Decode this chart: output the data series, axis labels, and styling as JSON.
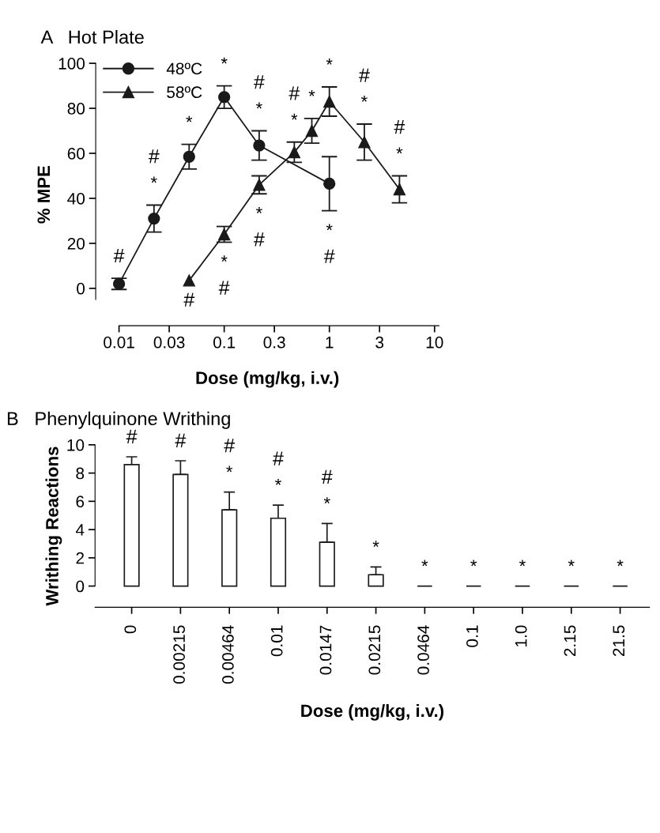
{
  "chart_data": [
    {
      "type": "line",
      "title": "A   Hot Plate",
      "xlabel": "Dose (mg/kg, i.v.)",
      "ylabel": "% MPE",
      "log": "x",
      "xlim": [
        0.006,
        11
      ],
      "xticks": [
        0.01,
        0.03,
        0.1,
        0.3,
        1,
        3,
        10
      ],
      "ylim": [
        -16.6,
        100
      ],
      "yticks": [
        0,
        20,
        40,
        60,
        80,
        100
      ],
      "legend": "top left",
      "grid": false,
      "series": [
        {
          "name": "48ºC",
          "color": "#1a1a1a",
          "marker": "circle",
          "x": [
            0.01,
            0.0215,
            0.0464,
            0.1,
            0.215,
            1
          ],
          "values": [
            2,
            31,
            58.5,
            85,
            63.5,
            46.5
          ],
          "errors": [
            2.5,
            6,
            5.5,
            5,
            6.5,
            12
          ]
        },
        {
          "name": "58ºC",
          "color": "#1a1a1a",
          "marker": "triangle",
          "x": [
            0.0464,
            0.1,
            0.215,
            0.464,
            0.681,
            1,
            2.15,
            4.64
          ],
          "values": [
            3.5,
            24,
            46,
            60.5,
            70,
            83,
            65,
            44
          ],
          "errors": [
            null,
            3.5,
            4,
            4.5,
            5.5,
            6.5,
            8,
            6
          ]
        }
      ],
      "annotations": [
        "#",
        "*",
        "#",
        "*",
        "*",
        "*",
        "#",
        "*",
        "#",
        "*",
        "*",
        "*",
        "#",
        "*",
        "#",
        "*",
        "#",
        "*",
        "#",
        "*",
        "#",
        "#"
      ]
    },
    {
      "type": "bar",
      "title": "B   Phenylquinone Writhing",
      "xlabel": "Dose (mg/kg, i.v.)",
      "ylabel": "Writhing Reactions",
      "categories": [
        "0",
        "0.00215",
        "0.00464",
        "0.01",
        "0.0147",
        "0.0215",
        "0.0464",
        "0.1",
        "1.0",
        "2.15",
        "21.5"
      ],
      "ylim": [
        -1.5,
        10
      ],
      "yticks": [
        0,
        2,
        4,
        6,
        8,
        10
      ],
      "grid": false,
      "colors": [
        "#ffffff",
        "#ffffff",
        "#ffffff",
        "#ffffff",
        "#ffffff",
        "#ffffff",
        "#1a1a1a",
        "#1a1a1a",
        "#1a1a1a",
        "#1a1a1a",
        "#1a1a1a"
      ],
      "values": [
        8.6,
        7.9,
        5.4,
        4.8,
        3.1,
        0.8,
        0,
        0,
        0,
        0,
        0
      ],
      "errors": [
        [
          8.6,
          9.15
        ],
        [
          7.9,
          8.87
        ],
        [
          5.4,
          6.65
        ],
        [
          4.8,
          5.73
        ],
        [
          3.1,
          4.43
        ],
        [
          0.8,
          1.35
        ],
        null,
        null,
        null,
        null,
        null
      ],
      "annotations": [
        {
          "text": "#",
          "x": "0",
          "y": 8.6
        },
        {
          "text": "#",
          "x": "0.00215",
          "y": 7.9
        },
        {
          "text": "*",
          "x": "0.00464",
          "y": 5.4
        },
        {
          "text": "#",
          "x": "0.00464",
          "y": 5.4
        },
        {
          "text": "*",
          "x": "0.01",
          "y": 4.8
        },
        {
          "text": "#",
          "x": "0.01",
          "y": 4.8
        },
        {
          "text": "*",
          "x": "0.0147",
          "y": 3.1
        },
        {
          "text": "#",
          "x": "0.0147",
          "y": 3.1
        },
        {
          "text": "*",
          "x": "0.0215",
          "y": 0.8
        },
        {
          "text": "*",
          "x": "0.0464",
          "y": 0
        },
        {
          "text": "*",
          "x": "0.1",
          "y": 0
        },
        {
          "text": "*",
          "x": "1.0",
          "y": 0
        },
        {
          "text": "*",
          "x": "2.15",
          "y": 0
        },
        {
          "text": "*",
          "x": "21.5",
          "y": 0
        }
      ]
    }
  ]
}
